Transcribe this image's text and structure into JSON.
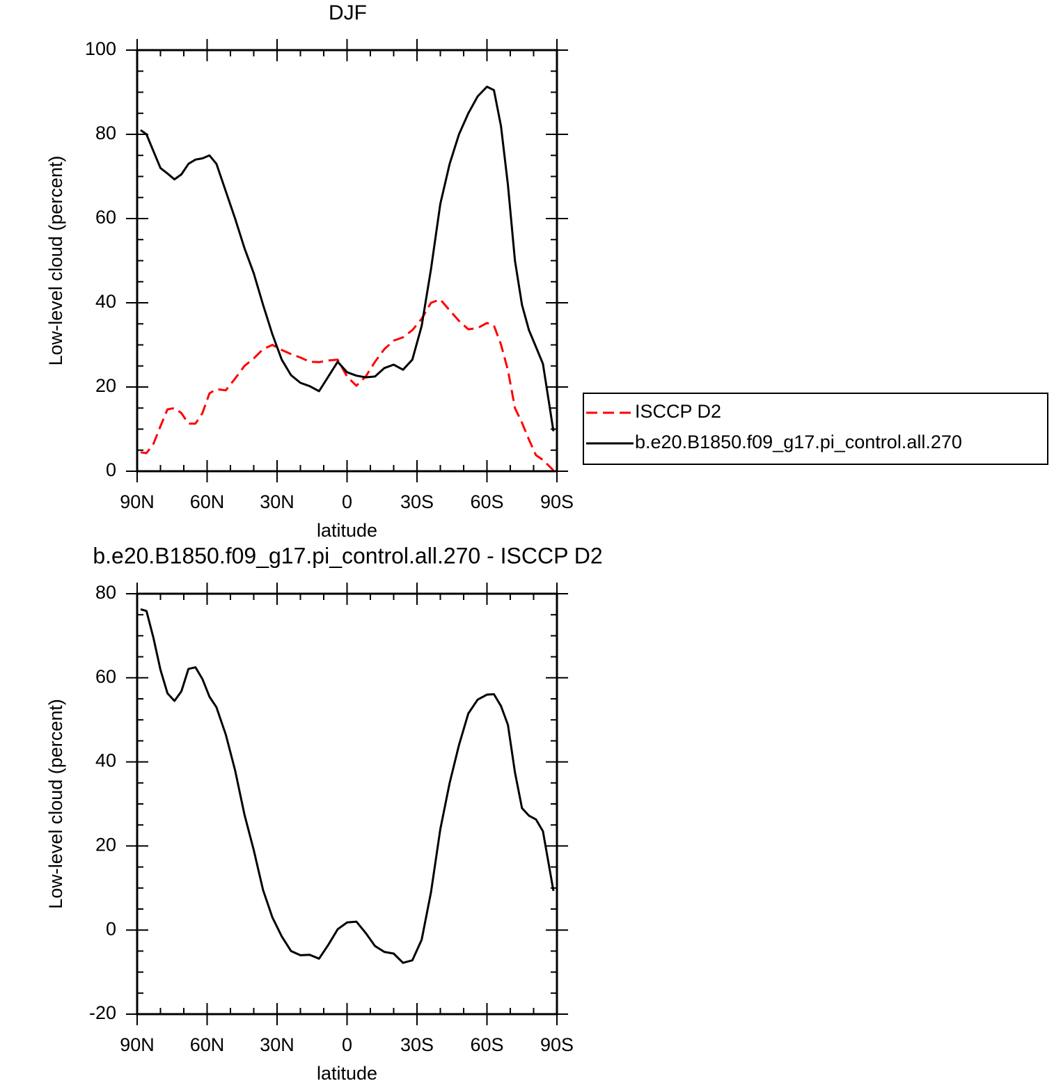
{
  "chart_data": [
    {
      "type": "line",
      "title": "DJF",
      "x_label": "latitude",
      "y_label": "Low-level cloud (percent)",
      "x": [
        88.5,
        86,
        83,
        80,
        77,
        74,
        71,
        68,
        65,
        62,
        59,
        56,
        52,
        48,
        44,
        40,
        36,
        32,
        28,
        24,
        20,
        16,
        12,
        8,
        4,
        0,
        -4,
        -8,
        -12,
        -16,
        -20,
        -24,
        -28,
        -32,
        -36,
        -40,
        -44,
        -48,
        -52,
        -56,
        -60,
        -63,
        -66,
        -69,
        -72,
        -75,
        -78,
        -81,
        -84,
        -88.5
      ],
      "series": [
        {
          "name": "ISCCP D2",
          "color": "#ff0000",
          "dashed": true,
          "values": [
            4.5,
            4.3,
            6.5,
            10.7,
            14.7,
            15,
            13.8,
            11.3,
            11.3,
            13.8,
            18.5,
            19.5,
            19.2,
            22,
            25,
            26.8,
            29,
            30,
            28.8,
            27.8,
            27,
            26,
            25.9,
            26.3,
            26.5,
            22.5,
            20.3,
            22.5,
            26,
            29,
            31,
            31.8,
            33.5,
            36.2,
            40,
            40.8,
            38.2,
            35.7,
            33.7,
            34,
            35.2,
            34.6,
            30.1,
            24,
            15,
            11.5,
            7.5,
            3.8,
            2.7,
            0.2
          ]
        },
        {
          "name": "b.e20.B1850.f09_g17.pi_control.all.270",
          "color": "#000000",
          "dashed": false,
          "values": [
            81,
            80,
            76,
            72,
            70.7,
            69.3,
            70.5,
            73,
            74,
            74.3,
            75,
            73,
            66.5,
            60,
            53,
            47,
            39.5,
            32.5,
            26.5,
            22.8,
            21,
            20.2,
            19,
            22.5,
            26,
            23.5,
            22.7,
            22.3,
            22.5,
            24.5,
            25.3,
            24.1,
            26.5,
            34.5,
            48,
            63.5,
            73,
            80,
            85,
            89,
            91.3,
            90.5,
            82,
            68,
            50,
            39.5,
            33.5,
            29.5,
            25.5,
            9.5
          ]
        }
      ],
      "xlim": [
        90,
        -90
      ],
      "xticks": [
        {
          "value": 90,
          "label": "90N"
        },
        {
          "value": 60,
          "label": "60N"
        },
        {
          "value": 30,
          "label": "30N"
        },
        0,
        {
          "value": -30,
          "label": "30S"
        },
        {
          "value": -60,
          "label": "60S"
        },
        {
          "value": -90,
          "label": "90S"
        }
      ],
      "ylim": [
        0,
        100
      ],
      "yticks": [
        0,
        20,
        40,
        60,
        80,
        100
      ],
      "legend": "right"
    },
    {
      "type": "line",
      "title": "b.e20.B1850.f09_g17.pi_control.all.270 - ISCCP D2",
      "x_label": "latitude",
      "y_label": "Low-level cloud (percent)",
      "x": [
        88.5,
        86,
        83,
        80,
        77,
        74,
        71,
        68,
        65,
        62,
        59,
        56,
        52,
        48,
        44,
        40,
        36,
        32,
        28,
        24,
        20,
        16,
        12,
        8,
        4,
        0,
        -4,
        -8,
        -12,
        -16,
        -20,
        -24,
        -28,
        -32,
        -36,
        -40,
        -44,
        -48,
        -52,
        -56,
        -60,
        -63,
        -66,
        -69,
        -72,
        -75,
        -78,
        -81,
        -84,
        -88.5
      ],
      "values": [
        76.3,
        75.9,
        69.5,
        61.9,
        56.3,
        54.5,
        56.8,
        62.1,
        62.5,
        59.7,
        55.5,
        53,
        46.5,
        38,
        27.5,
        19,
        9.5,
        3,
        -1.5,
        -5,
        -6,
        -5.9,
        -6.8,
        -3.5,
        0.2,
        1.8,
        2,
        -0.7,
        -3.8,
        -5.2,
        -5.6,
        -7.8,
        -7.2,
        -2.3,
        9,
        24,
        35,
        44,
        51.5,
        54.8,
        56,
        56.1,
        53.3,
        48.8,
        37.5,
        29,
        27.2,
        26.3,
        23.5,
        9.3
      ],
      "color": "#000000",
      "xlim": [
        90,
        -90
      ],
      "xticks": [
        {
          "value": 90,
          "label": "90N"
        },
        {
          "value": 60,
          "label": "60N"
        },
        {
          "value": 30,
          "label": "30N"
        },
        0,
        {
          "value": -30,
          "label": "30S"
        },
        {
          "value": -60,
          "label": "60S"
        },
        {
          "value": -90,
          "label": "90S"
        }
      ],
      "ylim": [
        -20,
        80
      ],
      "yticks": [
        -20,
        0,
        20,
        40,
        60,
        80
      ]
    }
  ]
}
